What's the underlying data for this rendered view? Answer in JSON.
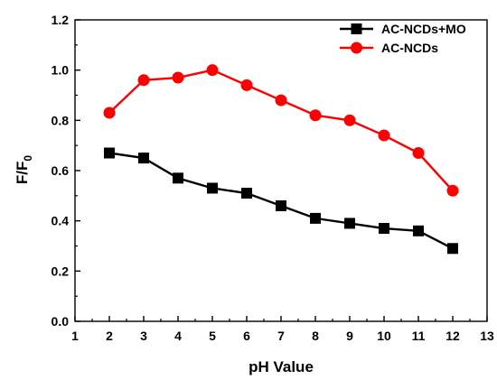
{
  "chart_data": {
    "type": "line",
    "title": "",
    "xlabel": "pH Value",
    "ylabel": "F/F",
    "ylabel_subscript": "0",
    "xlim": [
      1,
      13
    ],
    "ylim": [
      0.0,
      1.2
    ],
    "xticks": [
      1,
      2,
      3,
      4,
      5,
      6,
      7,
      8,
      9,
      10,
      11,
      12,
      13
    ],
    "yticks": [
      "0.0",
      "0.2",
      "0.4",
      "0.6",
      "0.8",
      "1.0",
      "1.2"
    ],
    "grid": false,
    "legend_position": "top-right",
    "x": [
      2,
      3,
      4,
      5,
      6,
      7,
      8,
      9,
      10,
      11,
      12
    ],
    "series": [
      {
        "name": "AC-NCDs+MO",
        "color": "#000000",
        "marker": "square",
        "values": [
          0.67,
          0.65,
          0.57,
          0.53,
          0.51,
          0.46,
          0.41,
          0.39,
          0.37,
          0.36,
          0.29
        ]
      },
      {
        "name": "AC-NCDs",
        "color": "#ff0000",
        "marker": "circle",
        "values": [
          0.83,
          0.96,
          0.97,
          1.0,
          0.94,
          0.88,
          0.82,
          0.8,
          0.74,
          0.67,
          0.52
        ]
      }
    ]
  }
}
